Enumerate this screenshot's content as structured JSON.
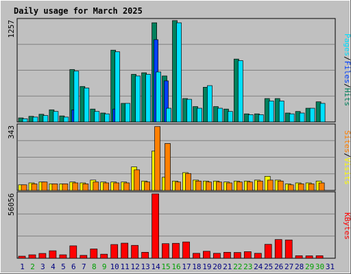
{
  "chart_data": {
    "type": "bar",
    "title": "Daily usage for March 2025",
    "colors": {
      "hits": "#00805c",
      "files": "#0040ff",
      "pages": "#00e0ff",
      "visits": "#ff8000",
      "sites": "#ffff00",
      "kbytes": "#ff0000",
      "title": "#0000c0",
      "weekday": "#000080",
      "weekend": "#00a000"
    },
    "days": [
      {
        "label": "1",
        "weekend": false
      },
      {
        "label": "2",
        "weekend": true
      },
      {
        "label": "3",
        "weekend": false
      },
      {
        "label": "4",
        "weekend": false
      },
      {
        "label": "5",
        "weekend": false
      },
      {
        "label": "6",
        "weekend": false
      },
      {
        "label": "7",
        "weekend": false
      },
      {
        "label": "8",
        "weekend": true
      },
      {
        "label": "9",
        "weekend": true
      },
      {
        "label": "10",
        "weekend": false
      },
      {
        "label": "11",
        "weekend": false
      },
      {
        "label": "12",
        "weekend": false
      },
      {
        "label": "13",
        "weekend": false
      },
      {
        "label": "14",
        "weekend": false
      },
      {
        "label": "15",
        "weekend": true
      },
      {
        "label": "16",
        "weekend": true
      },
      {
        "label": "17",
        "weekend": false
      },
      {
        "label": "18",
        "weekend": false
      },
      {
        "label": "19",
        "weekend": false
      },
      {
        "label": "20",
        "weekend": false
      },
      {
        "label": "21",
        "weekend": false
      },
      {
        "label": "22",
        "weekend": true
      },
      {
        "label": "23",
        "weekend": true
      },
      {
        "label": "24",
        "weekend": false
      },
      {
        "label": "25",
        "weekend": false
      },
      {
        "label": "26",
        "weekend": false
      },
      {
        "label": "27",
        "weekend": false
      },
      {
        "label": "28",
        "weekend": false
      },
      {
        "label": "29",
        "weekend": true
      },
      {
        "label": "30",
        "weekend": true
      },
      {
        "label": "31",
        "weekend": false
      }
    ],
    "panels": [
      {
        "name": "hits-files-pages",
        "max_label": "1257",
        "ymax": 1257,
        "legend": [
          {
            "text": "Pages",
            "color": "#00e0ff"
          },
          {
            "text": "/",
            "color": "#000000"
          },
          {
            "text": "Files",
            "color": "#0040ff"
          },
          {
            "text": "/",
            "color": "#000000"
          },
          {
            "text": "Hits",
            "color": "#00805c"
          }
        ],
        "series": [
          {
            "key": "hits",
            "color": "#00805c",
            "values": [
              50,
              70,
              95,
              150,
              75,
              650,
              440,
              160,
              110,
              890,
              230,
              590,
              610,
              1230,
              570,
              1257,
              290,
              190,
              430,
              190,
              160,
              780,
              100,
              100,
              290,
              290,
              110,
              130,
              170,
              250,
              0
            ]
          },
          {
            "key": "files",
            "color": "#0040ff",
            "values": [
              0,
              0,
              0,
              0,
              0,
              150,
              0,
              0,
              0,
              160,
              0,
              0,
              0,
              1020,
              510,
              0,
              0,
              0,
              0,
              0,
              0,
              0,
              0,
              0,
              0,
              0,
              0,
              0,
              0,
              0,
              0
            ]
          },
          {
            "key": "pages",
            "color": "#00e0ff",
            "values": [
              40,
              60,
              80,
              130,
              60,
              630,
              420,
              130,
              100,
              870,
              230,
              570,
              590,
              620,
              170,
              1230,
              280,
              170,
              450,
              170,
              130,
              760,
              90,
              90,
              260,
              260,
              100,
              110,
              170,
              230,
              0
            ]
          }
        ]
      },
      {
        "name": "visits-sites",
        "max_label": "343",
        "ymax": 343,
        "legend": [
          {
            "text": "Sites",
            "color": "#ff8000"
          },
          {
            "text": "/",
            "color": "#000000"
          },
          {
            "text": "Visits",
            "color": "#ffff00"
          }
        ],
        "series": [
          {
            "key": "sites",
            "color": "#ffff00",
            "values": [
              30,
              40,
              45,
              35,
              35,
              45,
              40,
              55,
              45,
              45,
              45,
              125,
              50,
              210,
              70,
              50,
              95,
              55,
              50,
              50,
              45,
              50,
              50,
              55,
              75,
              55,
              35,
              40,
              40,
              50,
              0
            ]
          },
          {
            "key": "visits",
            "color": "#ff8000",
            "values": [
              30,
              35,
              45,
              35,
              35,
              40,
              35,
              45,
              40,
              40,
              40,
              110,
              45,
              340,
              250,
              45,
              90,
              50,
              45,
              45,
              40,
              45,
              45,
              50,
              55,
              50,
              30,
              35,
              35,
              40,
              0
            ]
          }
        ]
      },
      {
        "name": "kbytes",
        "max_label": "56056",
        "ymax": 56056,
        "legend": [
          {
            "text": "KBytes",
            "color": "#ff0000"
          }
        ],
        "series": [
          {
            "key": "kbytes",
            "color": "#ff0000",
            "values": [
              1800,
              3000,
              4200,
              6500,
              3000,
              10800,
              2500,
              8100,
              3500,
              11900,
              13100,
              11200,
              5200,
              56056,
              12700,
              13000,
              14200,
              4300,
              6100,
              4300,
              5200,
              5000,
              5700,
              4300,
              12100,
              16300,
              15900,
              2200,
              2100,
              2200,
              0
            ]
          }
        ]
      }
    ]
  }
}
